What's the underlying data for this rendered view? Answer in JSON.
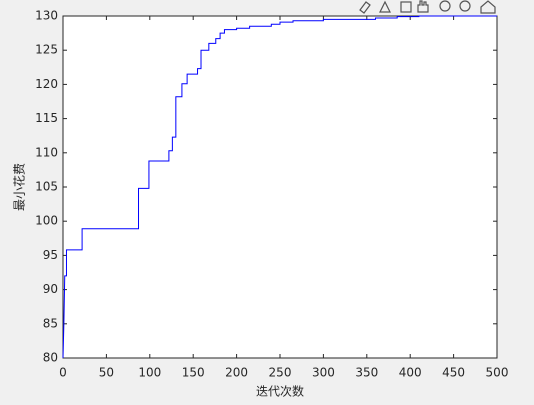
{
  "chart_data": {
    "type": "line",
    "xlabel": "迭代次数",
    "ylabel": "最小花费",
    "xlim": [
      0,
      500
    ],
    "ylim": [
      80,
      130
    ],
    "xticks": [
      0,
      50,
      100,
      150,
      200,
      250,
      300,
      350,
      400,
      450,
      500
    ],
    "yticks": [
      80,
      85,
      90,
      95,
      100,
      105,
      110,
      115,
      120,
      125,
      130
    ],
    "grid": false,
    "series": [
      {
        "color": "#0000ff",
        "x": [
          0,
          1,
          2,
          4,
          4,
          22,
          22,
          87,
          87,
          99,
          99,
          122,
          122,
          126,
          126,
          130,
          130,
          137,
          137,
          143,
          143,
          155,
          155,
          159,
          159,
          168,
          168,
          176,
          176,
          181,
          181,
          186,
          186,
          200,
          200,
          215,
          215,
          240,
          240,
          250,
          250,
          265,
          265,
          300,
          300,
          360,
          360,
          385,
          385,
          410,
          410,
          500
        ],
        "values": [
          80,
          85,
          92,
          92,
          95.8,
          95.8,
          98.9,
          98.9,
          104.8,
          104.8,
          108.8,
          108.8,
          110.3,
          110.3,
          112.3,
          112.3,
          118.2,
          118.2,
          120.1,
          120.1,
          121.5,
          121.5,
          122.3,
          122.3,
          125,
          125,
          126,
          126,
          126.7,
          126.7,
          127.5,
          127.5,
          128,
          128,
          128.2,
          128.2,
          128.5,
          128.5,
          128.8,
          128.8,
          129.1,
          129.1,
          129.3,
          129.3,
          129.5,
          129.5,
          129.7,
          129.7,
          129.9,
          129.9,
          130,
          130
        ]
      }
    ]
  }
}
